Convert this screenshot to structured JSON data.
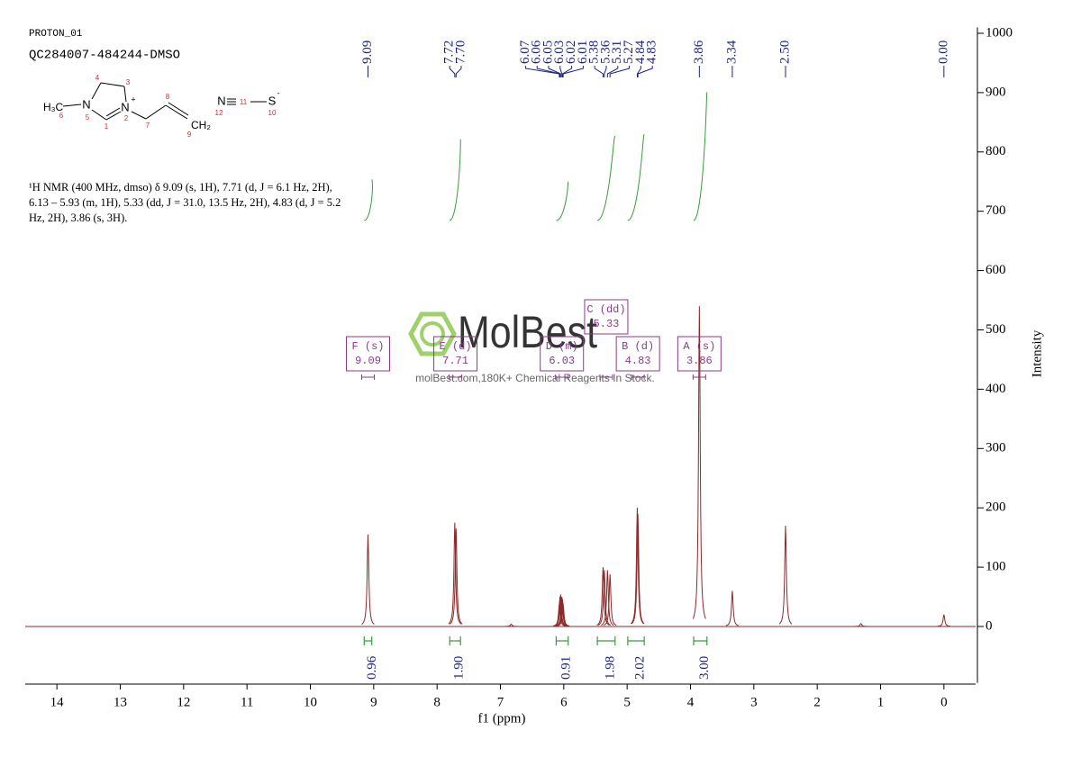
{
  "chart_data": {
    "type": "nmr",
    "sample_id": "PROTON_01",
    "title": "QC284007-484244-DMSO",
    "description": "¹H NMR (400 MHz, dmso) δ 9.09 (s, 1H), 7.71 (d, J = 6.1 Hz, 2H), 6.13 – 5.93 (m, 1H), 5.33 (dd, J = 31.0, 13.5 Hz, 2H), 4.83 (d, J = 5.2 Hz, 2H), 3.86 (s, 3H).",
    "structure": {
      "atoms": [
        "H₃C",
        "N",
        "N",
        "+",
        "CH₂",
        "N",
        "S",
        "-"
      ],
      "numbers": [
        "4",
        "3",
        "5",
        "1",
        "2",
        "6",
        "7",
        "8",
        "9",
        "12",
        "11",
        "10"
      ]
    },
    "x_label": "f1 (ppm)",
    "y_label": "Intensity",
    "xlim": [
      14.5,
      -0.5
    ],
    "xticks": [
      14,
      13,
      12,
      11,
      10,
      9,
      8,
      7,
      6,
      5,
      4,
      3,
      2,
      1,
      0
    ],
    "ylim": [
      -95,
      1010
    ],
    "yticks": [
      0,
      100,
      200,
      300,
      400,
      500,
      600,
      700,
      800,
      900,
      1000
    ],
    "spectrum_color": "#8b2a2a",
    "peaks": {
      "ppm": [
        9.09,
        7.72,
        7.7,
        6.83,
        6.07,
        6.06,
        6.05,
        6.03,
        6.02,
        6.01,
        5.38,
        5.36,
        5.31,
        5.27,
        4.84,
        4.83,
        3.86,
        3.34,
        2.5,
        1.31,
        0.0
      ],
      "intensity": [
        155,
        175,
        165,
        4,
        38,
        50,
        54,
        50,
        46,
        38,
        100,
        95,
        95,
        88,
        200,
        190,
        540,
        60,
        170,
        5,
        20
      ]
    },
    "peak_labels": [
      9.09,
      {
        "value": 7.72,
        "label": "7.72"
      },
      {
        "value": 7.7,
        "label": "7.70"
      },
      6.07,
      6.06,
      6.05,
      6.03,
      6.02,
      6.01,
      5.38,
      5.36,
      5.31,
      5.27,
      4.84,
      4.83,
      3.86,
      3.34,
      {
        "value": 2.5,
        "label": "2.50"
      },
      {
        "value": 0,
        "label": "0.00"
      }
    ],
    "integrals": {
      "color": "#3c9a3c",
      "ranges": [
        [
          9.15,
          9.03
        ],
        [
          7.8,
          7.63
        ],
        [
          6.12,
          5.93
        ],
        [
          5.47,
          5.19
        ],
        [
          4.99,
          4.73
        ],
        [
          3.95,
          3.74
        ]
      ],
      "values": [
        0.96,
        1.9,
        0.91,
        1.98,
        2.02,
        3
      ],
      "value_labels": [
        "0.96",
        "1.90",
        "0.91",
        "1.98",
        "2.02",
        "3.00"
      ]
    },
    "multiplets": [
      {
        "label": "F (s)",
        "shift": 9.09
      },
      {
        "label": "E (d)",
        "shift": 7.71
      },
      {
        "label": "D (m)",
        "shift": 6.03
      },
      {
        "label": "C (dd)",
        "shift": 5.33
      },
      {
        "label": "B (d)",
        "shift": 4.83
      },
      {
        "label": "A (s)",
        "shift": 3.86
      }
    ],
    "watermark": {
      "brand": "MolBest",
      "tagline": "molBest.com,180K+ Chemical Reagents In Stock."
    }
  }
}
